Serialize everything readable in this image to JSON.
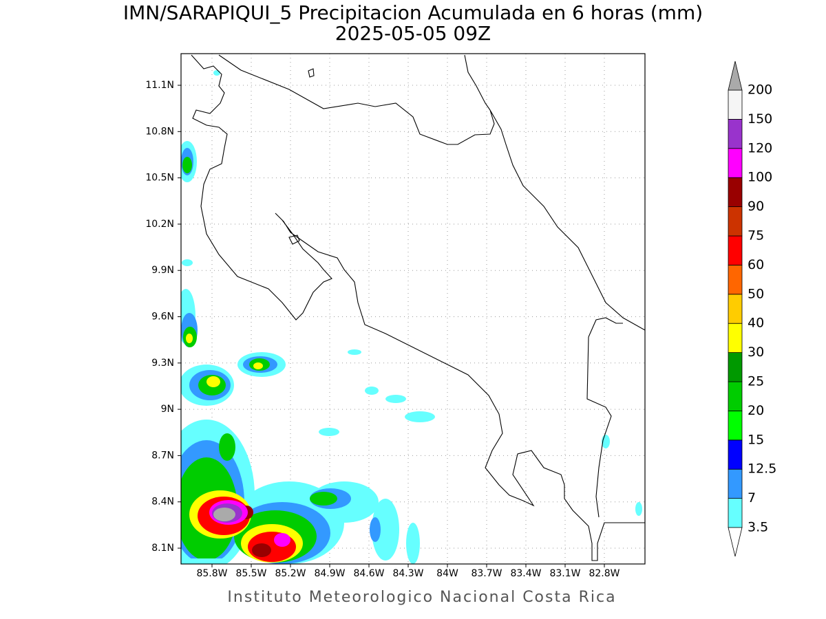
{
  "title": "IMN/SARAPIQUI_5 Precipitacion Acumulada en 6 horas (mm)",
  "subtitle": "2025-05-05 09Z",
  "lat_ticks": [
    "11.1N",
    "10.8N",
    "10.5N",
    "10.2N",
    "9.9N",
    "9.6N",
    "9.3N",
    "9N",
    "8.7N",
    "8.4N",
    "8.1N"
  ],
  "lon_ticks": [
    "85.8W",
    "85.5W",
    "85.2W",
    "84.9W",
    "84.6W",
    "84.3W",
    "84W",
    "83.7W",
    "83.4W",
    "83.1W",
    "82.8W"
  ],
  "colorbar": {
    "levels": [
      3.5,
      7,
      12.5,
      15,
      20,
      25,
      30,
      40,
      50,
      60,
      75,
      90,
      100,
      120,
      150,
      200
    ],
    "colors": [
      "#66ffff",
      "#3399ff",
      "#0000ff",
      "#00ff00",
      "#00cc00",
      "#009900",
      "#ffff00",
      "#ffcc00",
      "#ff6600",
      "#ff0000",
      "#cc3300",
      "#990000",
      "#ff00ff",
      "#9933cc",
      "#f5f5f5"
    ],
    "under_color": "#ffffff",
    "over_color": "#aaaaaa"
  },
  "footer": "Instituto Meteorologico Nacional Costa Rica"
}
